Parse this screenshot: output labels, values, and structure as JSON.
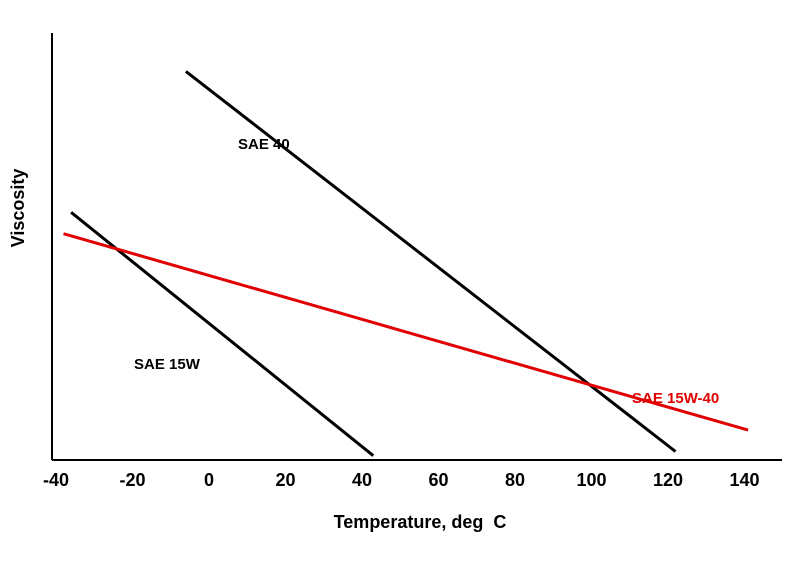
{
  "chart_data": {
    "type": "line",
    "title": "",
    "xlabel": "Temperature, deg  C",
    "ylabel": "Viscosity",
    "x_ticks": [
      "-40",
      "-20",
      "0",
      "20",
      "40",
      "60",
      "80",
      "100",
      "120",
      "140"
    ],
    "xlim": [
      -40,
      160
    ],
    "ylim": [
      0,
      1
    ],
    "grid": false,
    "legend": "none",
    "series": [
      {
        "name": "SAE 40",
        "color": "#000000",
        "points": [
          [
            -5,
            0.91
          ],
          [
            123,
            0.02
          ]
        ]
      },
      {
        "name": "SAE 15W",
        "color": "#000000",
        "points": [
          [
            -35,
            0.58
          ],
          [
            44,
            0.01
          ]
        ]
      },
      {
        "name": "SAE 15W-40",
        "color": "#e00000",
        "points": [
          [
            -37,
            0.53
          ],
          [
            142,
            0.07
          ]
        ]
      }
    ]
  }
}
